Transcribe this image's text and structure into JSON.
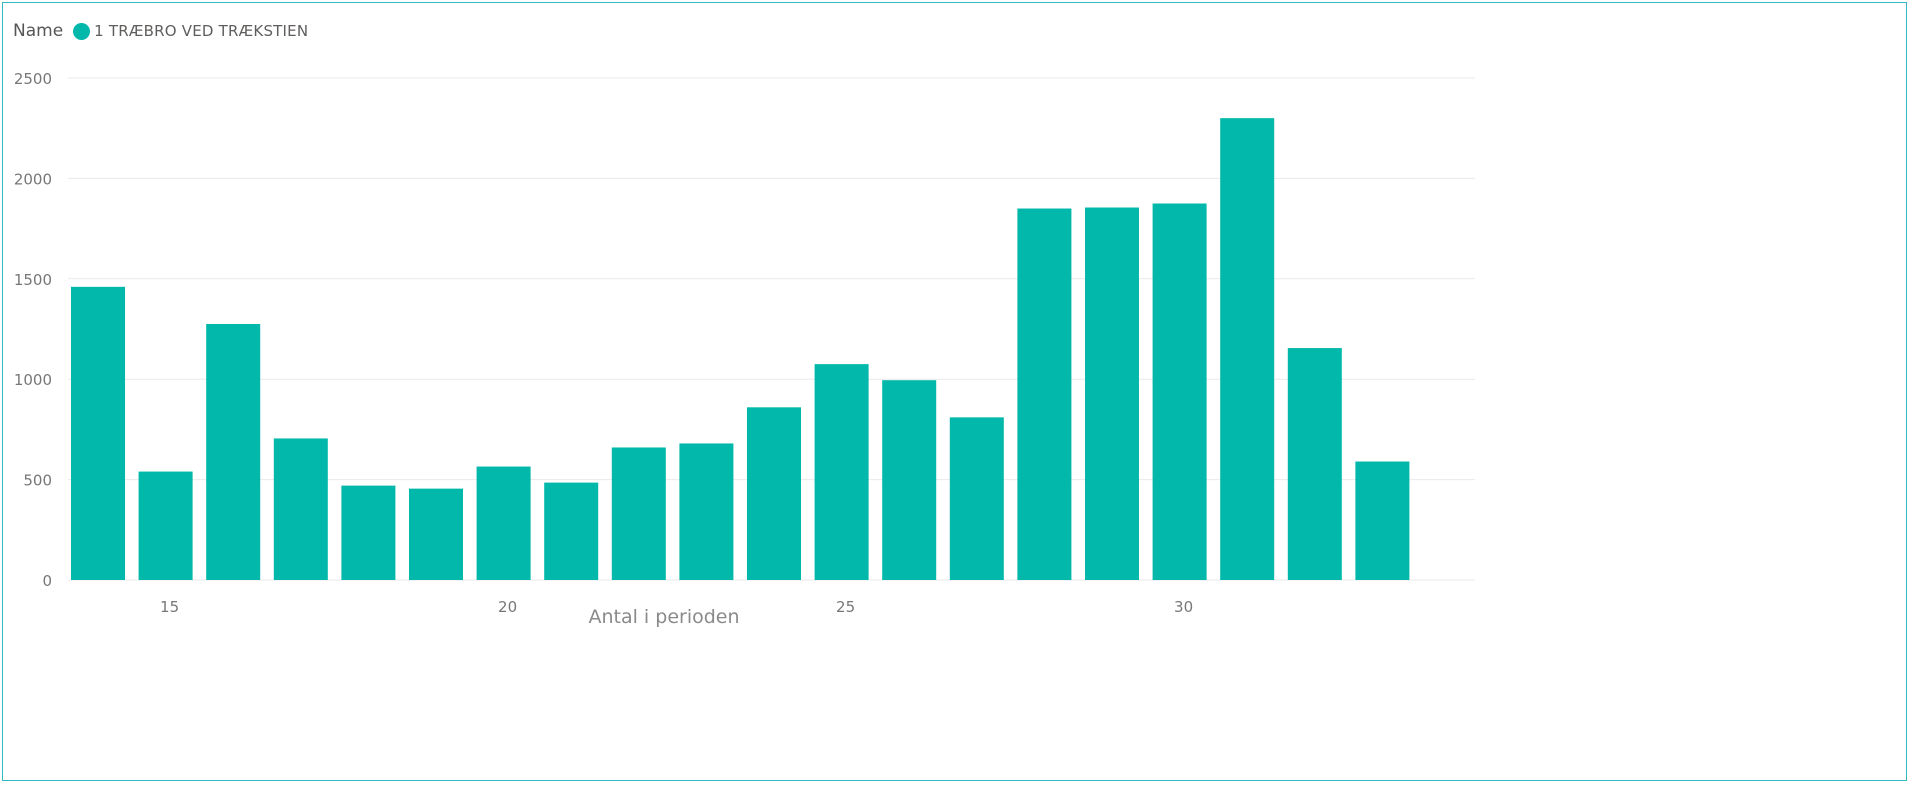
{
  "colors": {
    "bar": "#01b8aa",
    "grid": "#e9e9e9",
    "border": "#35b9c2"
  },
  "legend": {
    "title": "Name",
    "series_label": "1 TRÆBRO VED TRÆKSTIEN",
    "marker_icon": "filled-circle"
  },
  "chart_data": {
    "type": "bar",
    "xlabel": "Antal i perioden",
    "ylabel": "",
    "x": [
      14,
      15,
      16,
      17,
      18,
      19,
      20,
      21,
      22,
      23,
      24,
      25,
      26,
      27,
      28,
      29,
      30,
      31,
      32,
      33
    ],
    "series": [
      {
        "name": "1 TRÆBRO VED TRÆKSTIEN",
        "values": [
          1460,
          540,
          1275,
          705,
          470,
          455,
          565,
          485,
          660,
          680,
          860,
          1075,
          995,
          810,
          1850,
          1855,
          1875,
          2300,
          1155,
          590
        ]
      }
    ],
    "ylim": [
      0,
      2500
    ],
    "yticks": [
      0,
      500,
      1000,
      1500,
      2000,
      2500
    ],
    "xticks": [
      15,
      20,
      25,
      30
    ],
    "grid": true,
    "legend_position": "top-left"
  }
}
